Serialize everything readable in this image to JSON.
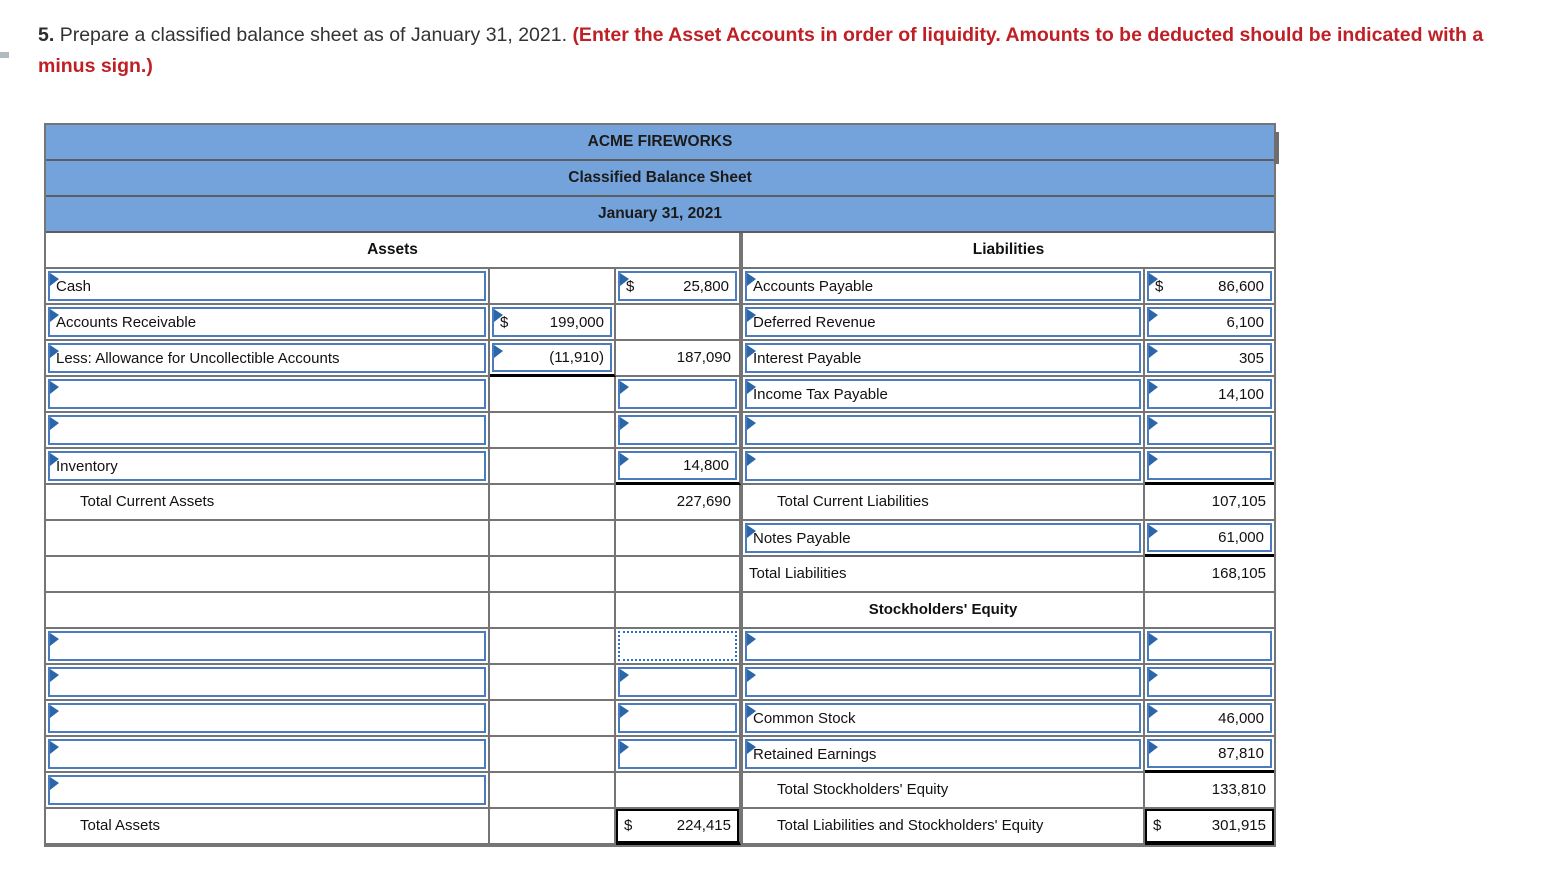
{
  "instruction": {
    "number": "5.",
    "text": "Prepare a classified balance sheet as of January 31, 2021.",
    "emphasis": "(Enter the Asset Accounts in order of liquidity. Amounts to be deducted should be indicated with a minus sign.)"
  },
  "colors": {
    "header_blue": "#74a3db",
    "input_border": "#4b7cbe",
    "input_marker": "#2a66a8",
    "grid_gray": "#757575",
    "dotted_blue": "#2f6fc9",
    "instruction_red": "#bf2026"
  },
  "table": {
    "title": "ACME FIREWORKS",
    "subtitle": "Classified Balance Sheet",
    "date": "January 31, 2021",
    "assets_header": "Assets",
    "liabilities_header": "Liabilities",
    "left_rows": [
      {
        "label": "Cash",
        "label_input": true,
        "amt": {
          "input": true,
          "dollar": "$",
          "value": "25,800"
        }
      },
      {
        "label": "Accounts Receivable",
        "label_input": true,
        "mid": {
          "input": true,
          "dollar": "$",
          "value": "199,000"
        }
      },
      {
        "label": "Less: Allowance for Uncollectible Accounts",
        "label_input": true,
        "mid": {
          "input": true,
          "value": "(11,910)",
          "underline": true
        },
        "amt": {
          "value": "187,090"
        }
      },
      {
        "label_input": true,
        "amt": {
          "input": true
        }
      },
      {
        "label_input": true,
        "amt": {
          "input": true
        }
      },
      {
        "label": "Inventory",
        "label_input": true,
        "amt": {
          "input": true,
          "value": "14,800",
          "underline": true
        }
      },
      {
        "label": "Total Current Assets",
        "indent": true,
        "amt": {
          "value": "227,690"
        }
      },
      {},
      {},
      {},
      {
        "label_input": true,
        "amt": {
          "dotted": true
        }
      },
      {
        "label_input": true,
        "amt": {
          "input": true
        }
      },
      {
        "label_input": true,
        "amt": {
          "input": true
        }
      },
      {
        "label_input": true,
        "amt": {
          "input": true
        }
      },
      {
        "label_input": true
      },
      {
        "label": "Total Assets",
        "indent": true,
        "amt": {
          "grand": true,
          "dollar": "$",
          "value": "224,415"
        }
      }
    ],
    "right_rows": [
      {
        "label": "Accounts Payable",
        "label_input": true,
        "amt": {
          "input": true,
          "dollar": "$",
          "value": "86,600"
        }
      },
      {
        "label": "Deferred Revenue",
        "label_input": true,
        "amt": {
          "input": true,
          "value": "6,100"
        }
      },
      {
        "label": "Interest Payable",
        "label_input": true,
        "amt": {
          "input": true,
          "value": "305"
        }
      },
      {
        "label": "Income Tax Payable",
        "label_input": true,
        "amt": {
          "input": true,
          "value": "14,100"
        }
      },
      {
        "label_input": true,
        "amt": {
          "input": true
        }
      },
      {
        "label_input": true,
        "amt": {
          "input": true,
          "underline": true
        }
      },
      {
        "label": "Total Current Liabilities",
        "indent": true,
        "amt": {
          "value": "107,105"
        }
      },
      {
        "label": "Notes Payable",
        "label_input": true,
        "amt": {
          "input": true,
          "value": "61,000",
          "underline": true
        }
      },
      {
        "label": "Total Liabilities",
        "amt": {
          "value": "168,105"
        }
      },
      {
        "header": "Stockholders' Equity"
      },
      {
        "label_input": true,
        "amt": {
          "input": true
        }
      },
      {
        "label_input": true,
        "amt": {
          "input": true
        }
      },
      {
        "label": "Common Stock",
        "label_input": true,
        "amt": {
          "input": true,
          "value": "46,000"
        }
      },
      {
        "label": "Retained Earnings",
        "label_input": true,
        "amt": {
          "input": true,
          "value": "87,810",
          "underline": true
        }
      },
      {
        "label": "Total Stockholders' Equity",
        "indent": true,
        "amt": {
          "value": "133,810"
        }
      },
      {
        "label": "Total Liabilities and Stockholders' Equity",
        "indent": true,
        "amt": {
          "grand": true,
          "dollar": "$",
          "value": "301,915"
        }
      }
    ]
  }
}
